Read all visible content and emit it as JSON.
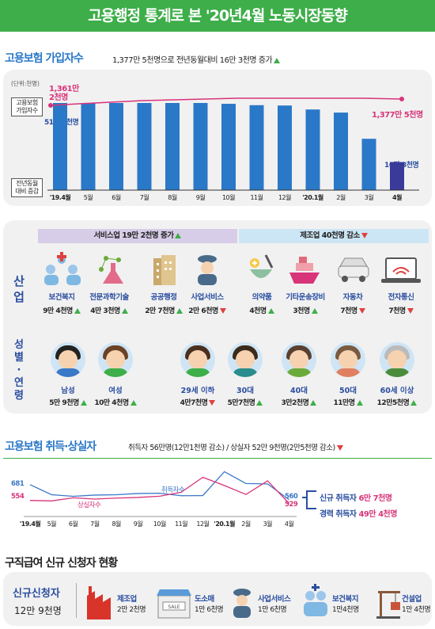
{
  "banner": {
    "title": "고용행정 통계로 본 '20년4월 노동시장동향"
  },
  "subscribers": {
    "title": "고용보험 가입자수",
    "note": "1,377만 5천명으로 전년동월대비 16만 3천명 증가",
    "unit": "(단위:천명)",
    "label_total": "고용보험 가입자수",
    "label_change": "전년동월 대비 증감",
    "start_value": "1,361만 2천명",
    "end_value": "1,377만 5천명",
    "first_bar_value": "51만 9천명",
    "last_bar_value": "16만 3천명",
    "colors": {
      "bar": "#2a78c8",
      "last_bar": "#3a3a9a",
      "line": "#d8347a"
    }
  },
  "chart_data": [
    {
      "type": "bar",
      "title": "",
      "categories": [
        "'19.4월",
        "5월",
        "6월",
        "7월",
        "8월",
        "9월",
        "10월",
        "11월",
        "12월",
        "'20.1월",
        "2월",
        "3월",
        "4월"
      ],
      "series": [
        {
          "name": "전년동월 대비 증감",
          "values": [
            519,
            516,
            511,
            510,
            513,
            515,
            501,
            493,
            491,
            468,
            450,
            298,
            163
          ]
        }
      ],
      "ylim": [
        0,
        600
      ],
      "xlabel": "",
      "ylabel": ""
    },
    {
      "type": "line",
      "title": "",
      "categories": [
        "'19.4월",
        "5월",
        "6월",
        "7월",
        "8월",
        "9월",
        "10월",
        "11월",
        "12월",
        "'20.1월",
        "2월",
        "3월",
        "4월"
      ],
      "series": [
        {
          "name": "취득자수",
          "values": [
            681,
            600,
            587,
            597,
            600,
            610,
            612,
            592,
            593,
            785,
            690,
            687,
            560
          ]
        },
        {
          "name": "상실자수",
          "values": [
            554,
            550,
            575,
            565,
            573,
            578,
            588,
            620,
            740,
            674,
            602,
            712,
            529
          ]
        }
      ],
      "ylim": [
        450,
        820
      ],
      "xlabel": "",
      "ylabel": ""
    }
  ],
  "industry": {
    "title": "산업",
    "service_header": "서비스업 19만 2천명 증가",
    "manufacture_header": "제조업 40천명 감소",
    "items": [
      {
        "name": "보건복지",
        "value": "9만 4천명",
        "dir": "up",
        "icon": "family-care-icon"
      },
      {
        "name": "전문과학기술",
        "value": "4만 3천명",
        "dir": "up",
        "icon": "flask-icon"
      },
      {
        "name": "공공행정",
        "value": "2만 7천명",
        "dir": "up",
        "icon": "building-icon"
      },
      {
        "name": "사업서비스",
        "value": "2만 6천명",
        "dir": "down",
        "icon": "guard-icon"
      },
      {
        "name": "의약품",
        "value": "4천명",
        "dir": "up",
        "icon": "pill-bowl-icon"
      },
      {
        "name": "기타운송장비",
        "value": "3천명",
        "dir": "up",
        "icon": "ship-icon"
      },
      {
        "name": "자동차",
        "value": "7천명",
        "dir": "down",
        "icon": "car-icon"
      },
      {
        "name": "전자통신",
        "value": "7천명",
        "dir": "down",
        "icon": "laptop-wifi-icon"
      }
    ]
  },
  "gender_age": {
    "title": "성별·연령",
    "items": [
      {
        "name": "남성",
        "value": "5만 9천명",
        "dir": "up",
        "hair": "#222222",
        "shirt": "#3a78c8"
      },
      {
        "name": "여성",
        "value": "10만 4천명",
        "dir": "up",
        "hair": "#6b4226",
        "shirt": "#3dae49"
      },
      {
        "name": "29세 이하",
        "value": "4만7천명",
        "dir": "down",
        "hair": "#4a3020",
        "shirt": "#3dae49"
      },
      {
        "name": "30대",
        "value": "5만7천명",
        "dir": "up",
        "hair": "#3a2a1a",
        "shirt": "#2a8c8c"
      },
      {
        "name": "40대",
        "value": "3만2천명",
        "dir": "up",
        "hair": "#5a4030",
        "shirt": "#6aaa3a"
      },
      {
        "name": "50대",
        "value": "11만명",
        "dir": "up",
        "hair": "#7a5a40",
        "shirt": "#e08060"
      },
      {
        "name": "60세 이상",
        "value": "12만5천명",
        "dir": "up",
        "hair": "#bbbbbb",
        "shirt": "#4a8c3a"
      }
    ]
  },
  "acquire_loss": {
    "title": "고용보험 취득·상실자",
    "note": "취득자 56만명(12만1천명 감소) / 상실자 52만 9천명(2만5천명 감소)",
    "start_acq": "681",
    "start_loss": "554",
    "end_acq": "560",
    "end_loss": "529",
    "label_acq_line": "취득자수",
    "label_loss_line": "상실자수",
    "legend_new": "신규 취득자",
    "legend_new_value": "6만 7천명",
    "legend_exp": "경력 취득자",
    "legend_exp_value": "49만 4천명",
    "colors": {
      "acq": "#3a78c8",
      "loss": "#d8347a"
    }
  },
  "applicants": {
    "title": "구직급여 신규 신청자 현황",
    "label": "신규신청자",
    "total": "12만 9천명",
    "items": [
      {
        "name": "제조업",
        "value": "2만 2천명",
        "icon": "factory-icon"
      },
      {
        "name": "도소매",
        "value": "1만 6천명",
        "icon": "shop-icon"
      },
      {
        "name": "사업서비스",
        "value": "1만 6천명",
        "icon": "guard-icon"
      },
      {
        "name": "보건복지",
        "value": "1만4천명",
        "icon": "family-care-icon"
      },
      {
        "name": "건설업",
        "value": "1만 4천명",
        "icon": "crane-icon"
      }
    ],
    "sale_text": "SALE"
  }
}
